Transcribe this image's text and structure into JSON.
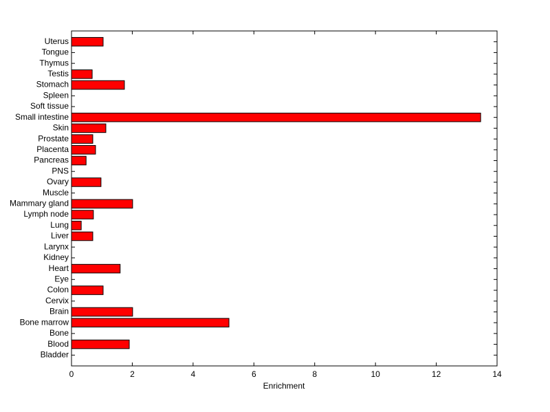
{
  "chart_data": {
    "type": "barh",
    "x_label": "Enrichment",
    "categories": [
      "Bladder",
      "Blood",
      "Bone",
      "Bone marrow",
      "Brain",
      "Cervix",
      "Colon",
      "Eye",
      "Heart",
      "Kidney",
      "Larynx",
      "Liver",
      "Lung",
      "Lymph node",
      "Mammary gland",
      "Muscle",
      "Ovary",
      "PNS",
      "Pancreas",
      "Placenta",
      "Prostate",
      "Skin",
      "Small intestine",
      "Soft tissue",
      "Spleen",
      "Stomach",
      "Testis",
      "Thymus",
      "Tongue",
      "Uterus"
    ],
    "values": [
      0,
      1.9,
      0,
      5.18,
      2.01,
      0,
      1.04,
      0,
      1.6,
      0,
      0,
      0.7,
      0.32,
      0.72,
      2.01,
      0,
      0.97,
      0,
      0.48,
      0.79,
      0.7,
      1.13,
      13.46,
      0,
      0,
      1.74,
      0.68,
      0,
      0,
      1.04
    ],
    "color": "#ff0000",
    "xlim": [
      0,
      14
    ],
    "xticks": [
      0,
      2,
      4,
      6,
      8,
      10,
      12,
      14
    ],
    "grid": false
  }
}
